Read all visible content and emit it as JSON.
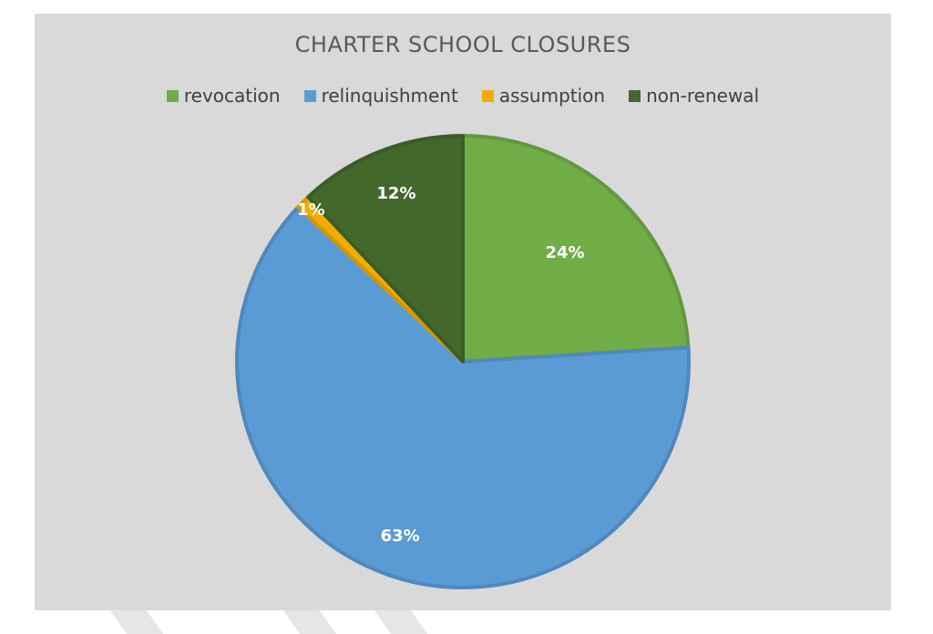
{
  "chart_data": {
    "type": "pie",
    "title": "CHARTER SCHOOL CLOSURES",
    "legend_position": "top",
    "slices": [
      {
        "label": "revocation",
        "value": 24,
        "display": "24%",
        "color": "#70ad47"
      },
      {
        "label": "relinquishment",
        "value": 63,
        "display": "63%",
        "color": "#5b9bd5"
      },
      {
        "label": "assumption",
        "value": 1,
        "display": "1%",
        "color": "#f0ad00"
      },
      {
        "label": "non-renewal",
        "value": 12,
        "display": "12%",
        "color": "#43682b"
      }
    ]
  }
}
